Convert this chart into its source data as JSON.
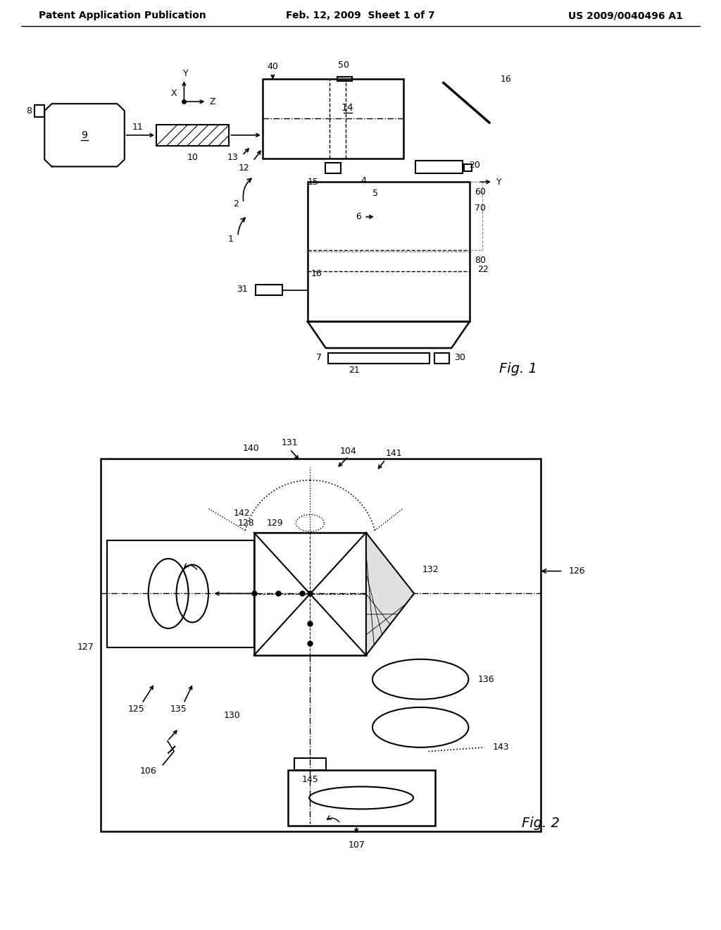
{
  "bg_color": "#ffffff",
  "header_left": "Patent Application Publication",
  "header_center": "Feb. 12, 2009  Sheet 1 of 7",
  "header_right": "US 2009/0040496 A1",
  "fig1_label": "Fig. 1",
  "fig2_label": "Fig. 2"
}
